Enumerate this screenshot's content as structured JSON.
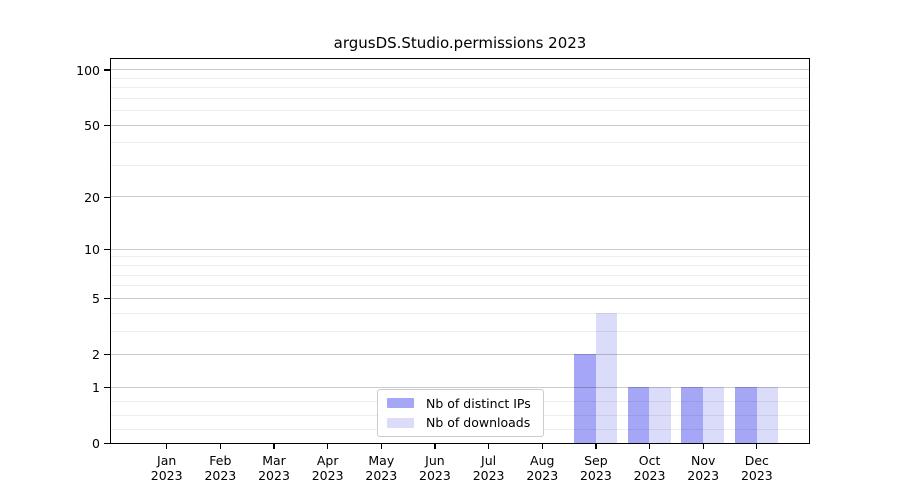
{
  "chart_data": {
    "type": "bar",
    "title": "argusDS.Studio.permissions 2023",
    "categories": [
      "Jan",
      "Feb",
      "Mar",
      "Apr",
      "May",
      "Jun",
      "Jul",
      "Aug",
      "Sep",
      "Oct",
      "Nov",
      "Dec"
    ],
    "year_label": "2023",
    "series": [
      {
        "name": "Nb of distinct IPs",
        "color": "#a6a6f7",
        "values": [
          0,
          0,
          0,
          0,
          0,
          0,
          0,
          0,
          2,
          1,
          1,
          1
        ]
      },
      {
        "name": "Nb of downloads",
        "color": "#dbdbfa",
        "values": [
          0,
          0,
          0,
          0,
          0,
          0,
          0,
          0,
          4,
          1,
          1,
          1
        ]
      }
    ],
    "y_axis": {
      "scale": "log1p",
      "major_ticks": [
        0,
        1,
        2,
        5,
        10,
        20,
        50,
        100
      ],
      "major_tick_labels": [
        "0",
        "1",
        "2",
        "5",
        "10",
        "20",
        "50",
        "100"
      ],
      "minor_ticks": [
        3,
        4,
        6,
        7,
        8,
        9,
        30,
        40,
        60,
        70,
        80,
        90
      ],
      "ylim": [
        0,
        114
      ]
    },
    "grid": "both",
    "legend": {
      "position": "lower-center",
      "labels": [
        "Nb of distinct IPs",
        "Nb of downloads"
      ]
    }
  }
}
